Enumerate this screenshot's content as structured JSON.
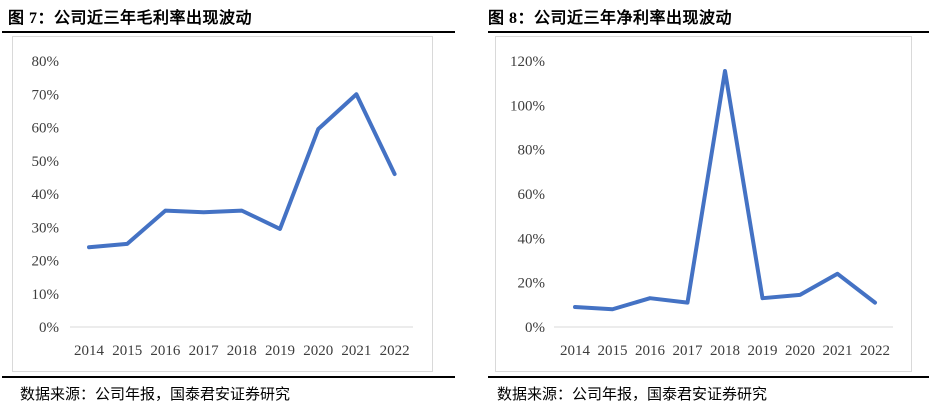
{
  "figures": [
    {
      "title": "图 7：公司近三年毛利率出现波动",
      "source": "数据来源：公司年报，国泰君安证券研究"
    },
    {
      "title": "图 8：公司近三年净利率出现波动",
      "source": "数据来源：公司年报，国泰君安证券研究"
    }
  ],
  "chart_data": [
    {
      "type": "line",
      "title": "图 7：公司近三年毛利率出现波动",
      "xlabel": "",
      "ylabel": "",
      "categories": [
        "2014",
        "2015",
        "2016",
        "2017",
        "2018",
        "2019",
        "2020",
        "2021",
        "2022"
      ],
      "values": [
        24,
        25,
        35,
        34.5,
        35,
        29.5,
        59.5,
        70,
        46
      ],
      "ylim": [
        0,
        80
      ],
      "yticks": [
        "0%",
        "10%",
        "20%",
        "30%",
        "40%",
        "50%",
        "60%",
        "70%",
        "80%"
      ],
      "grid": false,
      "legend": "none",
      "line_color": "#4472C4",
      "axis_color": "#d9d9d9"
    },
    {
      "type": "line",
      "title": "图 8：公司近三年净利率出现波动",
      "xlabel": "",
      "ylabel": "",
      "categories": [
        "2014",
        "2015",
        "2016",
        "2017",
        "2018",
        "2019",
        "2020",
        "2021",
        "2022"
      ],
      "values": [
        9,
        8,
        13,
        11,
        115.5,
        13,
        14.5,
        24,
        11
      ],
      "ylim": [
        0,
        120
      ],
      "yticks": [
        "0%",
        "20%",
        "40%",
        "60%",
        "80%",
        "100%",
        "120%"
      ],
      "grid": false,
      "legend": "none",
      "line_color": "#4472C4",
      "axis_color": "#d9d9d9"
    }
  ]
}
